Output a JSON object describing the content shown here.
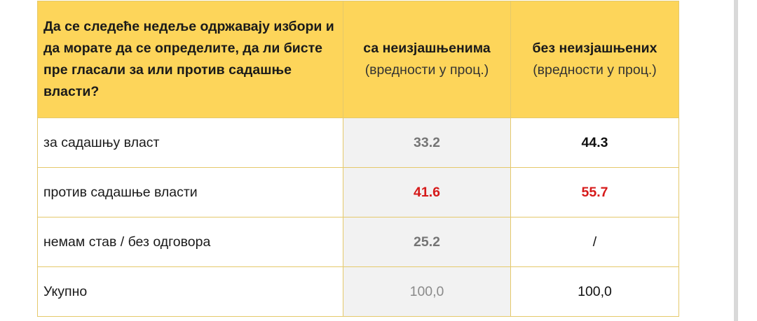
{
  "table": {
    "header": {
      "question": "Да се следеће недеље одржавају избори и да морате да се определите, да ли бисте пре гласали за или против садашње власти?",
      "col_a_title": "са неизјашњенима",
      "col_a_sub": "(вредности у проц.)",
      "col_b_title": "без неизјашњених",
      "col_b_sub": "(вредности у проц.)"
    },
    "rows": [
      {
        "label": "за садашњу власт",
        "with_undecided": "33.2",
        "without_undecided": "44.3"
      },
      {
        "label": "против садашње власти",
        "with_undecided": "41.6",
        "without_undecided": "55.7"
      },
      {
        "label": "немам став / без одговора",
        "with_undecided": "25.2",
        "without_undecided": "/"
      },
      {
        "label": "Укупно",
        "with_undecided": "100,0",
        "without_undecided": "100,0"
      }
    ]
  },
  "colors": {
    "header_bg": "#fdd55a",
    "border": "#e5c96b",
    "highlight_red": "#d61a1a",
    "shaded_column_bg": "#f2f2f2"
  }
}
